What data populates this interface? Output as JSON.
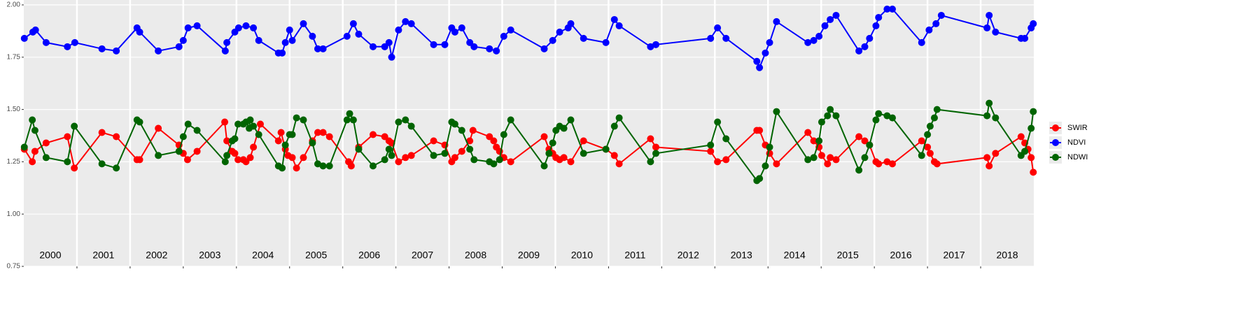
{
  "chart_data": {
    "type": "line",
    "xlim": [
      2000,
      2019
    ],
    "xticks": [
      2001,
      2002,
      2003,
      2004,
      2005,
      2006,
      2007,
      2008,
      2009,
      2010,
      2011,
      2012,
      2013,
      2014,
      2015,
      2016,
      2017,
      2018
    ],
    "year_labels": [
      2000,
      2001,
      2002,
      2003,
      2004,
      2005,
      2006,
      2007,
      2008,
      2009,
      2010,
      2011,
      2012,
      2013,
      2014,
      2015,
      2016,
      2017,
      2018
    ],
    "ylim": [
      0.75,
      2.0
    ],
    "yticks": [
      {
        "value": 0.75,
        "label": "0.75"
      },
      {
        "value": 1.0,
        "label": "1.00"
      },
      {
        "value": 1.25,
        "label": "1.25"
      },
      {
        "value": 1.5,
        "label": "1.50"
      },
      {
        "value": 1.75,
        "label": "1.75"
      },
      {
        "value": 2.0,
        "label": "2.00"
      }
    ],
    "grid": true,
    "legend": "right",
    "series": [
      {
        "name": "SWIR",
        "color": "#ff0000",
        "x": [
          2000.01,
          2000.16,
          2000.21,
          2000.42,
          2000.82,
          2000.95,
          2001.47,
          2001.74,
          2002.13,
          2002.18,
          2002.53,
          2002.92,
          2003.0,
          2003.08,
          2003.26,
          2003.78,
          2003.82,
          2003.92,
          2003.97,
          2004.03,
          2004.13,
          2004.18,
          2004.26,
          2004.32,
          2004.45,
          2004.79,
          2004.84,
          2004.92,
          2004.97,
          2005.05,
          2005.13,
          2005.26,
          2005.43,
          2005.53,
          2005.63,
          2005.75,
          2006.11,
          2006.16,
          2006.3,
          2006.57,
          2006.79,
          2006.87,
          2006.92,
          2007.05,
          2007.18,
          2007.29,
          2007.71,
          2007.92,
          2008.05,
          2008.11,
          2008.24,
          2008.39,
          2008.45,
          2008.76,
          2008.84,
          2008.89,
          2008.95,
          2009.03,
          2009.16,
          2009.79,
          2009.88,
          2009.95,
          2010.01,
          2010.08,
          2010.16,
          2010.29,
          2010.53,
          2010.95,
          2011.11,
          2011.2,
          2011.79,
          2011.89,
          2012.92,
          2013.05,
          2013.21,
          2013.79,
          2013.84,
          2013.95,
          2014.03,
          2014.16,
          2014.75,
          2014.86,
          2014.96,
          2015.01,
          2015.12,
          2015.17,
          2015.28,
          2015.71,
          2015.82,
          2015.91,
          2016.03,
          2016.08,
          2016.24,
          2016.34,
          2016.89,
          2017.0,
          2017.05,
          2017.13,
          2017.18,
          2018.12,
          2018.16,
          2018.28,
          2018.76,
          2018.83,
          2018.89,
          2018.95,
          2018.99
        ],
        "values": [
          1.31,
          1.25,
          1.3,
          1.34,
          1.37,
          1.22,
          1.39,
          1.37,
          1.26,
          1.26,
          1.41,
          1.33,
          1.29,
          1.26,
          1.3,
          1.44,
          1.35,
          1.3,
          1.29,
          1.26,
          1.26,
          1.25,
          1.27,
          1.32,
          1.43,
          1.35,
          1.39,
          1.31,
          1.28,
          1.27,
          1.22,
          1.27,
          1.35,
          1.39,
          1.39,
          1.37,
          1.25,
          1.23,
          1.32,
          1.38,
          1.37,
          1.35,
          1.34,
          1.25,
          1.27,
          1.28,
          1.35,
          1.33,
          1.25,
          1.27,
          1.3,
          1.35,
          1.4,
          1.37,
          1.35,
          1.32,
          1.3,
          1.27,
          1.25,
          1.37,
          1.31,
          1.29,
          1.27,
          1.26,
          1.27,
          1.25,
          1.35,
          1.31,
          1.28,
          1.24,
          1.36,
          1.32,
          1.3,
          1.25,
          1.26,
          1.4,
          1.4,
          1.33,
          1.29,
          1.24,
          1.39,
          1.35,
          1.32,
          1.28,
          1.24,
          1.27,
          1.26,
          1.37,
          1.35,
          1.33,
          1.25,
          1.24,
          1.25,
          1.24,
          1.35,
          1.32,
          1.29,
          1.25,
          1.24,
          1.27,
          1.23,
          1.29,
          1.37,
          1.34,
          1.31,
          1.27,
          1.2
        ]
      },
      {
        "name": "NDVI",
        "color": "#0000ff",
        "x": [
          2000.01,
          2000.17,
          2000.22,
          2000.42,
          2000.82,
          2000.96,
          2001.47,
          2001.74,
          2002.13,
          2002.18,
          2002.53,
          2002.92,
          2003.0,
          2003.09,
          2003.26,
          2003.79,
          2003.82,
          2003.97,
          2004.04,
          2004.18,
          2004.32,
          2004.42,
          2004.79,
          2004.86,
          2004.92,
          2005.0,
          2005.05,
          2005.26,
          2005.43,
          2005.53,
          2005.63,
          2006.08,
          2006.2,
          2006.3,
          2006.57,
          2006.79,
          2006.87,
          2006.92,
          2007.05,
          2007.18,
          2007.29,
          2007.71,
          2007.92,
          2008.05,
          2008.11,
          2008.24,
          2008.39,
          2008.47,
          2008.76,
          2008.89,
          2009.03,
          2009.16,
          2009.79,
          2009.95,
          2010.08,
          2010.24,
          2010.29,
          2010.53,
          2010.95,
          2011.11,
          2011.2,
          2011.79,
          2011.89,
          2012.92,
          2013.05,
          2013.21,
          2013.79,
          2013.84,
          2013.95,
          2014.03,
          2014.16,
          2014.75,
          2014.86,
          2014.96,
          2015.07,
          2015.17,
          2015.28,
          2015.71,
          2015.82,
          2015.91,
          2016.03,
          2016.08,
          2016.24,
          2016.34,
          2016.89,
          2017.03,
          2017.16,
          2017.26,
          2018.12,
          2018.16,
          2018.28,
          2018.76,
          2018.83,
          2018.95,
          2018.99
        ],
        "values": [
          1.84,
          1.87,
          1.88,
          1.82,
          1.8,
          1.82,
          1.79,
          1.78,
          1.89,
          1.87,
          1.78,
          1.8,
          1.83,
          1.89,
          1.9,
          1.78,
          1.82,
          1.87,
          1.89,
          1.9,
          1.89,
          1.83,
          1.77,
          1.77,
          1.82,
          1.88,
          1.83,
          1.91,
          1.85,
          1.79,
          1.79,
          1.85,
          1.91,
          1.86,
          1.8,
          1.8,
          1.82,
          1.75,
          1.88,
          1.92,
          1.91,
          1.81,
          1.81,
          1.89,
          1.87,
          1.89,
          1.82,
          1.8,
          1.79,
          1.78,
          1.85,
          1.88,
          1.79,
          1.83,
          1.87,
          1.89,
          1.91,
          1.84,
          1.82,
          1.93,
          1.9,
          1.8,
          1.81,
          1.84,
          1.89,
          1.84,
          1.73,
          1.7,
          1.77,
          1.82,
          1.92,
          1.82,
          1.83,
          1.85,
          1.9,
          1.93,
          1.95,
          1.78,
          1.8,
          1.84,
          1.9,
          1.94,
          1.98,
          1.98,
          1.82,
          1.88,
          1.91,
          1.95,
          1.89,
          1.95,
          1.87,
          1.84,
          1.84,
          1.89,
          1.91
        ]
      },
      {
        "name": "NDWI",
        "color": "#006400",
        "x": [
          2000.01,
          2000.16,
          2000.21,
          2000.42,
          2000.82,
          2000.95,
          2001.47,
          2001.74,
          2002.13,
          2002.18,
          2002.53,
          2002.92,
          2003.0,
          2003.09,
          2003.26,
          2003.79,
          2003.82,
          2003.92,
          2003.97,
          2004.03,
          2004.13,
          2004.18,
          2004.24,
          2004.26,
          2004.32,
          2004.42,
          2004.79,
          2004.86,
          2004.92,
          2005.0,
          2005.05,
          2005.13,
          2005.26,
          2005.43,
          2005.53,
          2005.63,
          2005.75,
          2006.08,
          2006.13,
          2006.2,
          2006.3,
          2006.57,
          2006.79,
          2006.87,
          2006.92,
          2007.05,
          2007.18,
          2007.29,
          2007.71,
          2007.92,
          2008.05,
          2008.11,
          2008.24,
          2008.39,
          2008.47,
          2008.76,
          2008.84,
          2008.95,
          2009.03,
          2009.16,
          2009.79,
          2009.88,
          2009.95,
          2010.01,
          2010.08,
          2010.16,
          2010.29,
          2010.53,
          2010.95,
          2011.11,
          2011.2,
          2011.79,
          2011.89,
          2012.92,
          2013.05,
          2013.21,
          2013.79,
          2013.84,
          2013.95,
          2014.03,
          2014.16,
          2014.75,
          2014.86,
          2014.96,
          2015.01,
          2015.12,
          2015.17,
          2015.28,
          2015.71,
          2015.82,
          2015.91,
          2016.03,
          2016.08,
          2016.24,
          2016.34,
          2016.89,
          2017.0,
          2017.05,
          2017.13,
          2017.18,
          2018.12,
          2018.16,
          2018.28,
          2018.76,
          2018.83,
          2018.95,
          2018.99
        ],
        "values": [
          1.32,
          1.45,
          1.4,
          1.27,
          1.25,
          1.42,
          1.24,
          1.22,
          1.45,
          1.44,
          1.28,
          1.3,
          1.37,
          1.43,
          1.4,
          1.25,
          1.28,
          1.35,
          1.36,
          1.43,
          1.43,
          1.44,
          1.41,
          1.45,
          1.42,
          1.38,
          1.23,
          1.22,
          1.33,
          1.38,
          1.38,
          1.46,
          1.45,
          1.34,
          1.24,
          1.23,
          1.23,
          1.45,
          1.48,
          1.45,
          1.31,
          1.23,
          1.26,
          1.31,
          1.28,
          1.44,
          1.45,
          1.42,
          1.28,
          1.29,
          1.44,
          1.43,
          1.4,
          1.31,
          1.26,
          1.25,
          1.24,
          1.26,
          1.38,
          1.45,
          1.23,
          1.29,
          1.34,
          1.4,
          1.42,
          1.41,
          1.45,
          1.29,
          1.31,
          1.42,
          1.46,
          1.25,
          1.29,
          1.33,
          1.44,
          1.36,
          1.16,
          1.17,
          1.23,
          1.32,
          1.49,
          1.26,
          1.27,
          1.35,
          1.44,
          1.47,
          1.5,
          1.47,
          1.21,
          1.27,
          1.33,
          1.45,
          1.48,
          1.47,
          1.46,
          1.28,
          1.38,
          1.42,
          1.46,
          1.5,
          1.47,
          1.53,
          1.46,
          1.28,
          1.3,
          1.41,
          1.49
        ]
      }
    ]
  }
}
